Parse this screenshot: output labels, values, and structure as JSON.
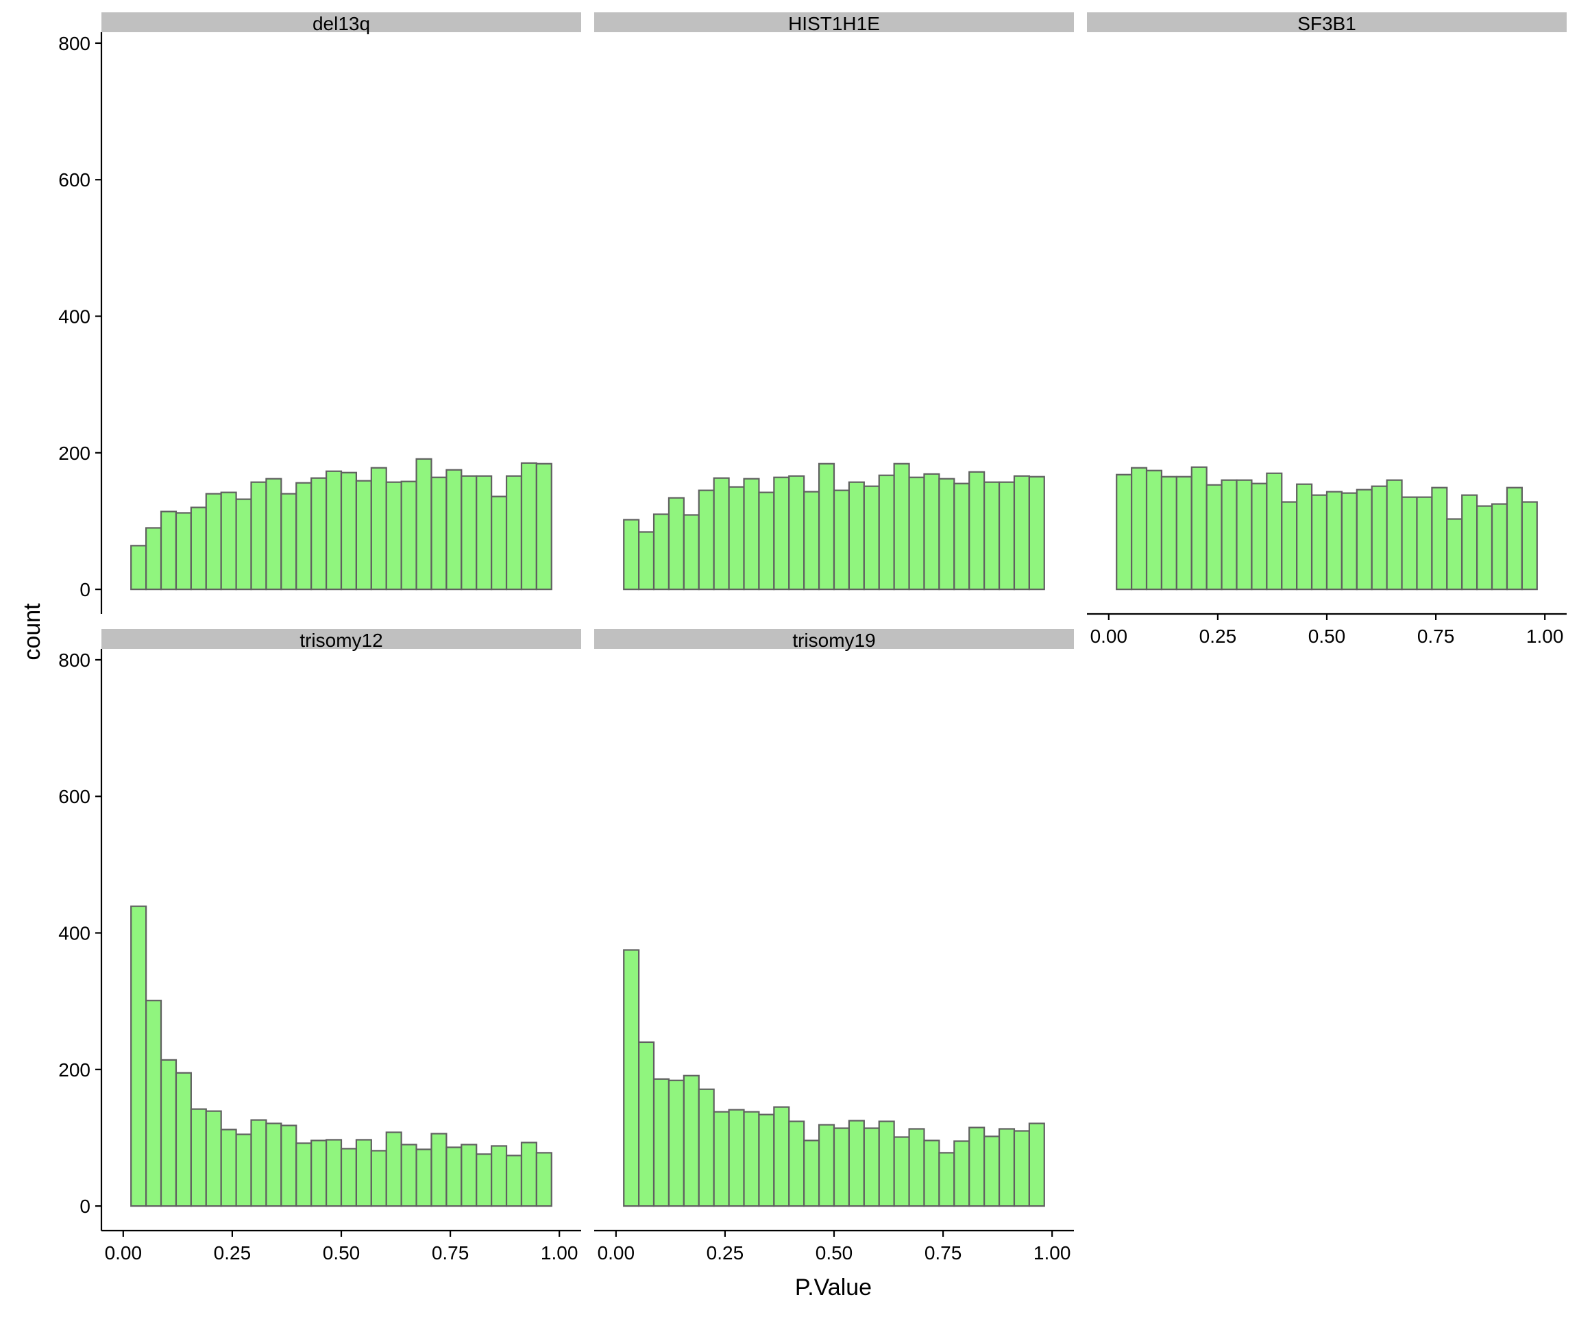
{
  "chart_data": {
    "type": "bar",
    "subtype": "faceted-histogram",
    "title": "",
    "xlabel": "P.Value",
    "ylabel": "count",
    "xlim": [
      -0.05,
      1.05
    ],
    "ylim": [
      -36,
      816
    ],
    "x_ticks": [
      0,
      0.25,
      0.5,
      0.75,
      1
    ],
    "x_tick_labels": [
      "0.00",
      "0.25",
      "0.50",
      "0.75",
      "1.00"
    ],
    "y_ticks": [
      0,
      200,
      400,
      600,
      800
    ],
    "y_tick_labels": [
      "0",
      "200",
      "400",
      "600",
      "800"
    ],
    "bins": 28,
    "bin_range": [
      0.0179,
      0.9821
    ],
    "grid": false,
    "legend": "none",
    "colors": {
      "bar_fill": "#90F57E",
      "bar_stroke": "#606060",
      "strip_fill": "#C0C0C0",
      "axis": "#000000"
    },
    "facets": [
      {
        "name": "del13q",
        "values": [
          64,
          90,
          114,
          112,
          120,
          140,
          142,
          132,
          157,
          162,
          140,
          156,
          163,
          173,
          171,
          159,
          178,
          157,
          158,
          191,
          164,
          175,
          166,
          166,
          136,
          166,
          185,
          184
        ]
      },
      {
        "name": "HIST1H1E",
        "values": [
          102,
          84,
          110,
          134,
          109,
          145,
          163,
          150,
          162,
          142,
          164,
          166,
          143,
          184,
          145,
          157,
          151,
          167,
          184,
          164,
          169,
          162,
          155,
          172,
          157,
          157,
          166,
          165
        ]
      },
      {
        "name": "SF3B1",
        "values": [
          168,
          178,
          174,
          165,
          165,
          179,
          153,
          160,
          160,
          155,
          170,
          128,
          154,
          138,
          143,
          141,
          146,
          151,
          160,
          135,
          135,
          149,
          103,
          138,
          122,
          125,
          149,
          128
        ]
      },
      {
        "name": "trisomy12",
        "values": [
          439,
          301,
          214,
          195,
          142,
          139,
          112,
          105,
          126,
          121,
          118,
          92,
          96,
          97,
          84,
          97,
          81,
          108,
          90,
          83,
          106,
          86,
          90,
          76,
          88,
          74,
          93,
          78
        ]
      },
      {
        "name": "trisomy19",
        "values": [
          375,
          240,
          186,
          184,
          191,
          171,
          138,
          141,
          138,
          134,
          145,
          124,
          96,
          119,
          114,
          125,
          114,
          124,
          101,
          113,
          96,
          78,
          95,
          115,
          102,
          113,
          110,
          121
        ]
      }
    ]
  }
}
